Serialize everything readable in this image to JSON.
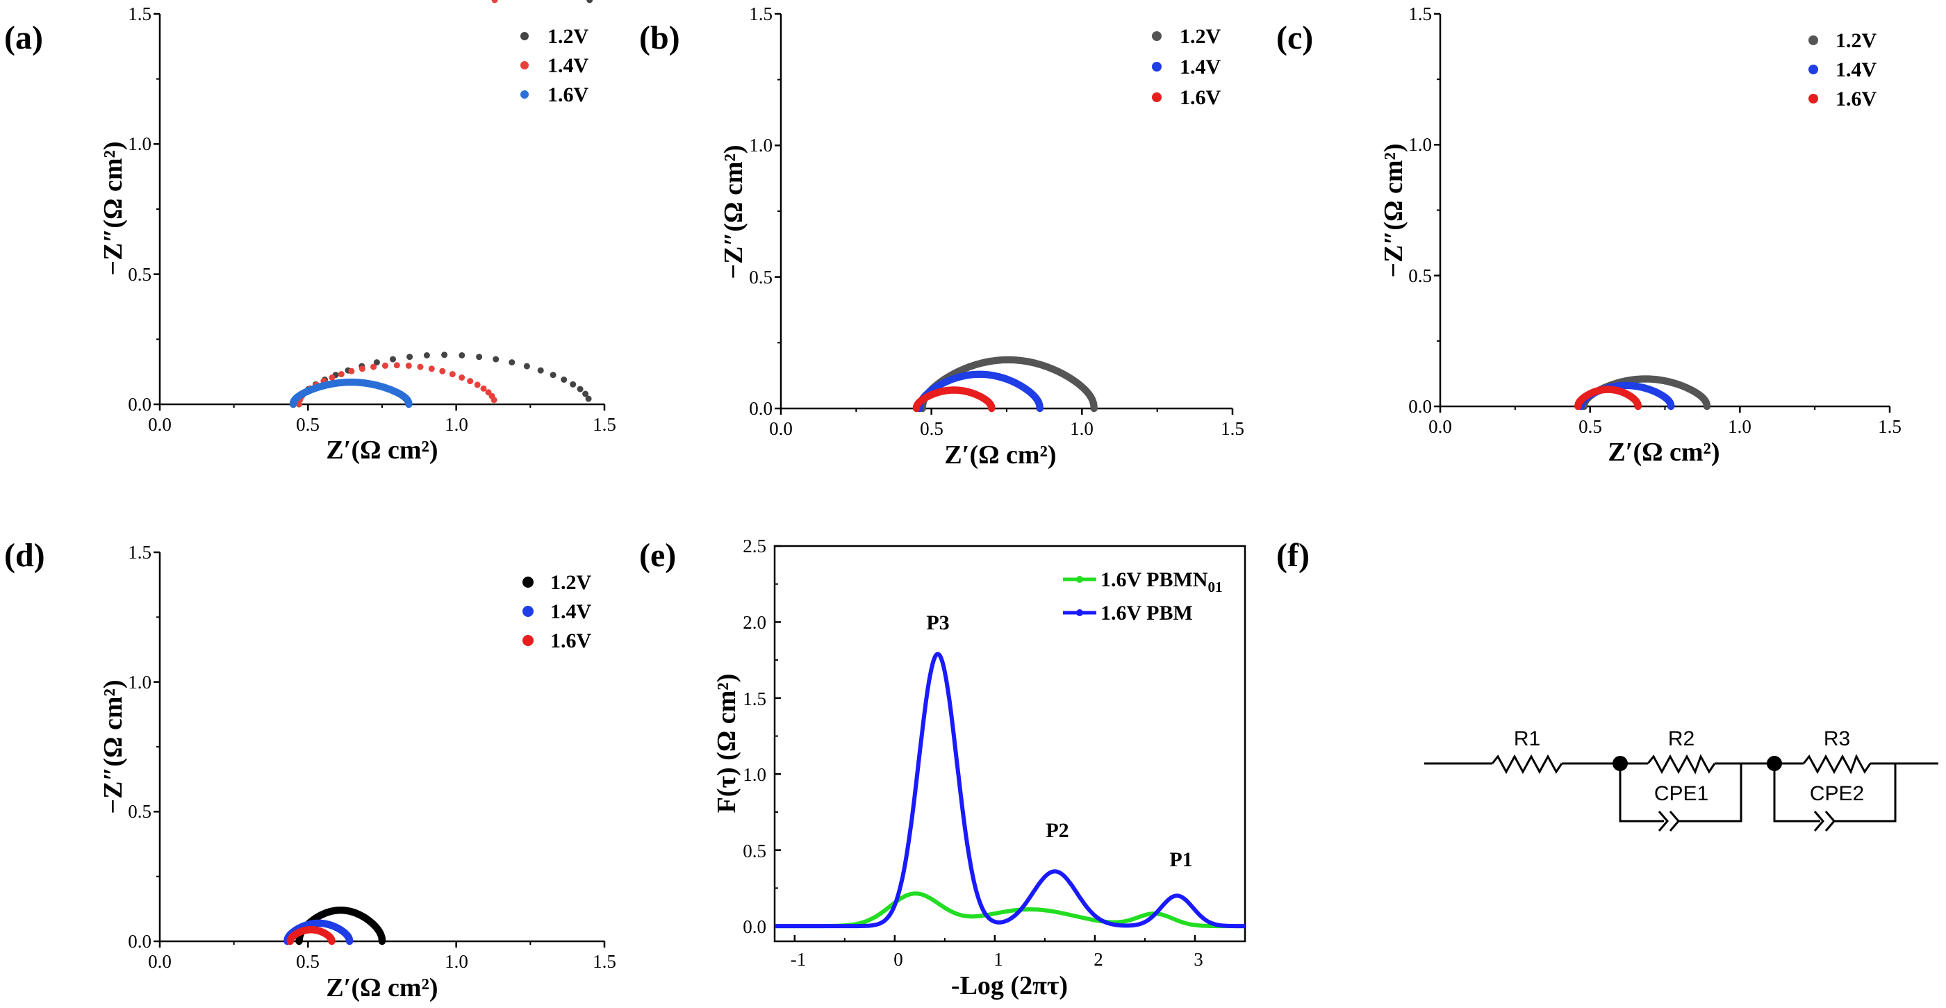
{
  "panels": [
    {
      "label": "(a)"
    },
    {
      "label": "(b)"
    },
    {
      "label": "(c)"
    },
    {
      "label": "(d)"
    },
    {
      "label": "(e)"
    },
    {
      "label": "(f)"
    }
  ],
  "chart_data": [
    {
      "panel": "(a)",
      "type": "scatter",
      "xlabel": "Z′(Ω cm²)",
      "ylabel": "−Z″(Ω cm²)",
      "xlim": [
        0,
        1.5
      ],
      "ylim": [
        0,
        1.5
      ],
      "xticks": [
        "0.0",
        "0.5",
        "1.0",
        "1.5"
      ],
      "yticks": [
        "0.0",
        "0.5",
        "1.0",
        "1.5"
      ],
      "legend_position": "top-right",
      "grid": false,
      "series": [
        {
          "name": "1.2V",
          "color": "#444444",
          "marker_density": "sparse",
          "R0": 0.47,
          "R": 0.98,
          "hmax": 0.19,
          "skew": 0.5
        },
        {
          "name": "1.4V",
          "color": "#e8413c",
          "marker_density": "sparse",
          "R0": 0.47,
          "R": 0.66,
          "hmax": 0.15,
          "skew": 0.5
        },
        {
          "name": "1.6V",
          "color": "#2a6fd6",
          "marker_density": "dense",
          "R0": 0.45,
          "R": 0.39,
          "hmax": 0.085,
          "skew": 0.8
        }
      ]
    },
    {
      "panel": "(b)",
      "type": "scatter",
      "xlabel": "Z′(Ω cm²)",
      "ylabel": "−Z″(Ω cm²)",
      "xlim": [
        0,
        1.5
      ],
      "ylim": [
        0,
        1.5
      ],
      "xticks": [
        "0.0",
        "0.5",
        "1.0",
        "1.5"
      ],
      "yticks": [
        "0.0",
        "0.5",
        "1.0",
        "1.5"
      ],
      "legend_position": "top-right",
      "grid": false,
      "series": [
        {
          "name": "1.2V",
          "color": "#555555",
          "marker_density": "dense",
          "R0": 0.47,
          "R": 0.57,
          "hmax": 0.185,
          "skew": 0.75
        },
        {
          "name": "1.4V",
          "color": "#1f3ee6",
          "marker_density": "dense",
          "R0": 0.46,
          "R": 0.4,
          "hmax": 0.13,
          "skew": 0.78
        },
        {
          "name": "1.6V",
          "color": "#e81e1e",
          "marker_density": "dense",
          "R0": 0.45,
          "R": 0.25,
          "hmax": 0.07,
          "skew": 0.8
        }
      ]
    },
    {
      "panel": "(c)",
      "type": "scatter",
      "xlabel": "Z′(Ω cm²)",
      "ylabel": "−Z″(Ω cm²)",
      "xlim": [
        0,
        1.5
      ],
      "ylim": [
        0,
        1.5
      ],
      "xticks": [
        "0.0",
        "0.5",
        "1.0",
        "1.5"
      ],
      "yticks": [
        "0.0",
        "0.5",
        "1.0",
        "1.5"
      ],
      "legend_position": "top-right",
      "grid": false,
      "series": [
        {
          "name": "1.2V",
          "color": "#555555",
          "marker_density": "dense",
          "R0": 0.48,
          "R": 0.41,
          "hmax": 0.105,
          "skew": 0.75
        },
        {
          "name": "1.4V",
          "color": "#1f3ee6",
          "marker_density": "dense",
          "R0": 0.47,
          "R": 0.3,
          "hmax": 0.08,
          "skew": 0.78
        },
        {
          "name": "1.6V",
          "color": "#e81e1e",
          "marker_density": "dense",
          "R0": 0.46,
          "R": 0.2,
          "hmax": 0.065,
          "skew": 0.8
        }
      ]
    },
    {
      "panel": "(d)",
      "type": "scatter",
      "xlabel": "Z′(Ω cm²)",
      "ylabel": "−Z″(Ω cm²)",
      "xlim": [
        0,
        1.5
      ],
      "ylim": [
        0,
        1.5
      ],
      "xticks": [
        "0.0",
        "0.5",
        "1.0",
        "1.5"
      ],
      "yticks": [
        "0.0",
        "0.5",
        "1.0",
        "1.5"
      ],
      "legend_position": "top-right",
      "grid": false,
      "series": [
        {
          "name": "1.2V",
          "color": "#000000",
          "marker_density": "dense",
          "R0": 0.47,
          "R": 0.28,
          "hmax": 0.12,
          "skew": 0.75
        },
        {
          "name": "1.4V",
          "color": "#1f3ee6",
          "marker_density": "dense",
          "R0": 0.43,
          "R": 0.21,
          "hmax": 0.07,
          "skew": 0.78
        },
        {
          "name": "1.6V",
          "color": "#e81e1e",
          "marker_density": "dense",
          "R0": 0.44,
          "R": 0.14,
          "hmax": 0.045,
          "skew": 0.8
        }
      ]
    },
    {
      "panel": "(e)",
      "type": "line",
      "xlabel": "-Log (2πτ)",
      "ylabel": "F(τ) (Ω cm²)",
      "xlim": [
        -1.2,
        3.5
      ],
      "ylim": [
        -0.1,
        2.5
      ],
      "xticks": [
        "-1",
        "0",
        "1",
        "2",
        "3"
      ],
      "xtick_values": [
        -1,
        0,
        1,
        2,
        3
      ],
      "yticks": [
        "0.0",
        "0.5",
        "1.0",
        "1.5",
        "2.0",
        "2.5"
      ],
      "ytick_values": [
        0,
        0.5,
        1,
        1.5,
        2,
        2.5
      ],
      "legend_position": "top-right",
      "grid": false,
      "series": [
        {
          "name": "1.6V PBMN",
          "name_subscript": "01",
          "color": "#22dd22",
          "peaks": [
            {
              "mu": 0.2,
              "sigma": 0.25,
              "amp": 0.21
            },
            {
              "mu": 1.35,
              "sigma": 0.45,
              "amp": 0.11
            },
            {
              "mu": 2.6,
              "sigma": 0.18,
              "amp": 0.08
            }
          ]
        },
        {
          "name": "1.6V PBM",
          "color": "#1a1aff",
          "peaks": [
            {
              "mu": 0.43,
              "sigma": 0.19,
              "amp": 1.79
            },
            {
              "mu": 1.6,
              "sigma": 0.22,
              "amp": 0.36
            },
            {
              "mu": 2.82,
              "sigma": 0.16,
              "amp": 0.2
            }
          ]
        }
      ],
      "annotations": [
        {
          "text": "P3",
          "x": 0.43,
          "y": 1.79
        },
        {
          "text": "P2",
          "x": 1.6,
          "y": 0.36
        },
        {
          "text": "P1",
          "x": 2.82,
          "y": 0.2
        }
      ]
    }
  ],
  "circuit": {
    "resistors": [
      "R1",
      "R2",
      "R3"
    ],
    "cpes": [
      "CPE1",
      "CPE2"
    ]
  }
}
